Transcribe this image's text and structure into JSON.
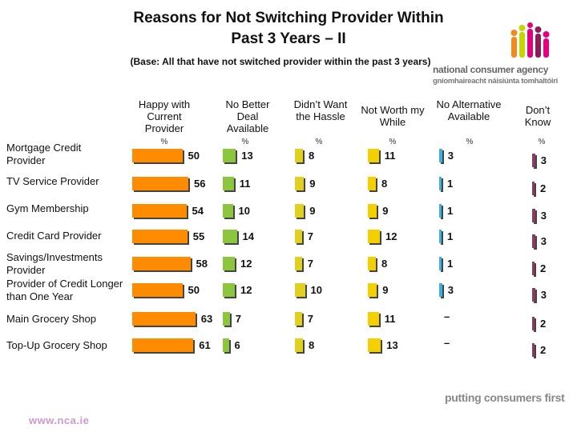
{
  "header": {
    "title_line1": "Reasons for Not Switching  Provider Within",
    "title_line2": "Past 3 Years – II",
    "subtitle": "(Base: All that have not switched provider within the past 3 years)"
  },
  "logo": {
    "name": "national consumer agency",
    "irish_name": "gníomhaireacht náisiúnta tomhaltóirí"
  },
  "footer": {
    "website": "www.nca.ie",
    "tagline": "putting consumers first"
  },
  "chart_data": {
    "type": "bar",
    "title": "Reasons for Not Switching  Provider Within Past 3 Years – II",
    "subtitle": "(Base: All that have not switched provider within the past 3 years)",
    "unit_label": "%",
    "categories": [
      "Mortgage Credit Provider",
      "TV Service Provider",
      "Gym Membership",
      "Credit Card Provider",
      "Savings/Investments Provider",
      "Provider of Credit Longer than One Year",
      "Main Grocery Shop",
      "Top-Up Grocery Shop"
    ],
    "series": [
      {
        "name": "Happy with Current Provider",
        "color": "#ff8c00",
        "values": [
          50,
          56,
          54,
          55,
          58,
          50,
          63,
          61
        ]
      },
      {
        "name": "No Better Deal Available",
        "color": "#8cc63f",
        "values": [
          13,
          11,
          10,
          14,
          12,
          12,
          7,
          6
        ]
      },
      {
        "name": "Didn’t Want the Hassle",
        "color": "#e0d020",
        "values": [
          8,
          9,
          9,
          7,
          7,
          10,
          7,
          8
        ]
      },
      {
        "name": "Not Worth my While",
        "color": "#f5d000",
        "values": [
          11,
          8,
          9,
          12,
          8,
          9,
          11,
          13
        ]
      },
      {
        "name": "No Alternative Available",
        "color": "#3ab0e0",
        "values": [
          3,
          1,
          1,
          1,
          1,
          3,
          null,
          null
        ]
      },
      {
        "name": "Don’t Know",
        "color": "#8b3a62",
        "values": [
          3,
          2,
          3,
          3,
          2,
          3,
          2,
          2
        ]
      }
    ],
    "missing_label": "–"
  }
}
